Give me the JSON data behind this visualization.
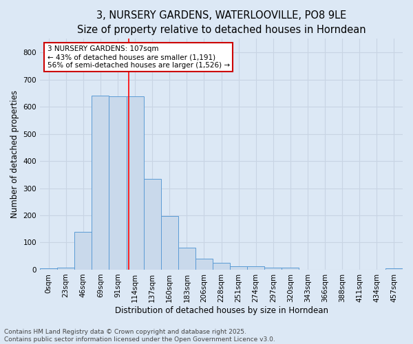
{
  "title": "3, NURSERY GARDENS, WATERLOOVILLE, PO8 9LE",
  "subtitle": "Size of property relative to detached houses in Horndean",
  "xlabel": "Distribution of detached houses by size in Horndean",
  "ylabel": "Number of detached properties",
  "bar_labels": [
    "0sqm",
    "23sqm",
    "46sqm",
    "69sqm",
    "91sqm",
    "114sqm",
    "137sqm",
    "160sqm",
    "183sqm",
    "206sqm",
    "228sqm",
    "251sqm",
    "274sqm",
    "297sqm",
    "320sqm",
    "343sqm",
    "366sqm",
    "388sqm",
    "411sqm",
    "434sqm",
    "457sqm"
  ],
  "bar_values": [
    5,
    8,
    140,
    640,
    638,
    638,
    335,
    198,
    82,
    40,
    26,
    12,
    12,
    8,
    8,
    0,
    0,
    0,
    0,
    0,
    5
  ],
  "bar_color": "#c9d9eb",
  "bar_edge_color": "#5b9bd5",
  "red_line_x": 4.65,
  "annotation_line1": "3 NURSERY GARDENS: 107sqm",
  "annotation_line2": "← 43% of detached houses are smaller (1,191)",
  "annotation_line3": "56% of semi-detached houses are larger (1,526) →",
  "annotation_box_color": "#ffffff",
  "annotation_box_edge_color": "#cc0000",
  "ylim": [
    0,
    850
  ],
  "yticks": [
    0,
    100,
    200,
    300,
    400,
    500,
    600,
    700,
    800
  ],
  "footer_text": "Contains HM Land Registry data © Crown copyright and database right 2025.\nContains public sector information licensed under the Open Government Licence v3.0.",
  "grid_color": "#c8d4e3",
  "background_color": "#dce8f5",
  "plot_bg_color": "#dce8f5",
  "title_fontsize": 10.5,
  "subtitle_fontsize": 9.5,
  "axis_label_fontsize": 8.5,
  "tick_fontsize": 7.5,
  "annotation_fontsize": 7.5,
  "footer_fontsize": 6.5
}
